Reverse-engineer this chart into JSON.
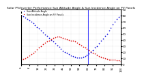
{
  "title": "Solar PV/Inverter Performance Sun Altitude Angle & Sun Incidence Angle on PV Panels",
  "background_color": "#ffffff",
  "grid_color": "#aaaaaa",
  "ylim": [
    0,
    90
  ],
  "xlim": [
    0,
    100
  ],
  "blue_series": {
    "x": [
      0,
      2,
      4,
      6,
      8,
      10,
      12,
      14,
      16,
      18,
      20,
      22,
      24,
      26,
      28,
      30,
      32,
      34,
      36,
      38,
      40,
      42,
      44,
      46,
      48,
      50,
      52,
      54,
      56,
      58,
      60,
      62,
      64,
      66,
      68,
      70,
      72,
      74,
      76,
      78,
      80,
      82,
      84,
      86,
      88,
      90,
      92,
      94,
      96,
      98,
      100
    ],
    "y": [
      80,
      78,
      76,
      74,
      72,
      70,
      67,
      64,
      61,
      58,
      55,
      52,
      49,
      46,
      43,
      40,
      37,
      34,
      31,
      28,
      25,
      22,
      20,
      18,
      16,
      14,
      13,
      12,
      11,
      11,
      11,
      12,
      13,
      15,
      17,
      20,
      23,
      27,
      30,
      34,
      38,
      42,
      46,
      50,
      55,
      60,
      65,
      70,
      74,
      77,
      80
    ]
  },
  "red_series": {
    "x": [
      0,
      2,
      4,
      6,
      8,
      10,
      12,
      14,
      16,
      18,
      20,
      22,
      24,
      26,
      28,
      30,
      32,
      34,
      36,
      38,
      40,
      42,
      44,
      46,
      48,
      50,
      52,
      54,
      56,
      58,
      60,
      62,
      64,
      66,
      68,
      70,
      72,
      74,
      76,
      78,
      80,
      82,
      84,
      86,
      88,
      90,
      92,
      94,
      96,
      98,
      100
    ],
    "y": [
      8,
      9,
      10,
      12,
      14,
      16,
      18,
      21,
      24,
      27,
      30,
      33,
      35,
      37,
      39,
      41,
      43,
      44,
      45,
      45,
      44,
      43,
      42,
      41,
      40,
      39,
      38,
      37,
      35,
      33,
      31,
      29,
      27,
      25,
      23,
      21,
      19,
      17,
      15,
      13,
      12,
      11,
      10,
      9,
      8,
      8,
      7,
      7,
      6,
      6,
      5
    ]
  },
  "blue_spike_x": 67,
  "blue_color": "#0000dd",
  "red_color": "#dd0000",
  "spike_color": "#0000ff",
  "marker_size": 1.2,
  "title_fontsize": 3.2,
  "tick_fontsize": 2.8,
  "y_ticks_right": [
    0,
    10,
    20,
    30,
    40,
    50,
    60,
    70,
    80,
    90
  ],
  "legend_entries": [
    "Sun Altitude Angle",
    "Sun Incidence Angle on PV Panels"
  ],
  "legend_colors": [
    "#0000dd",
    "#dd0000"
  ]
}
